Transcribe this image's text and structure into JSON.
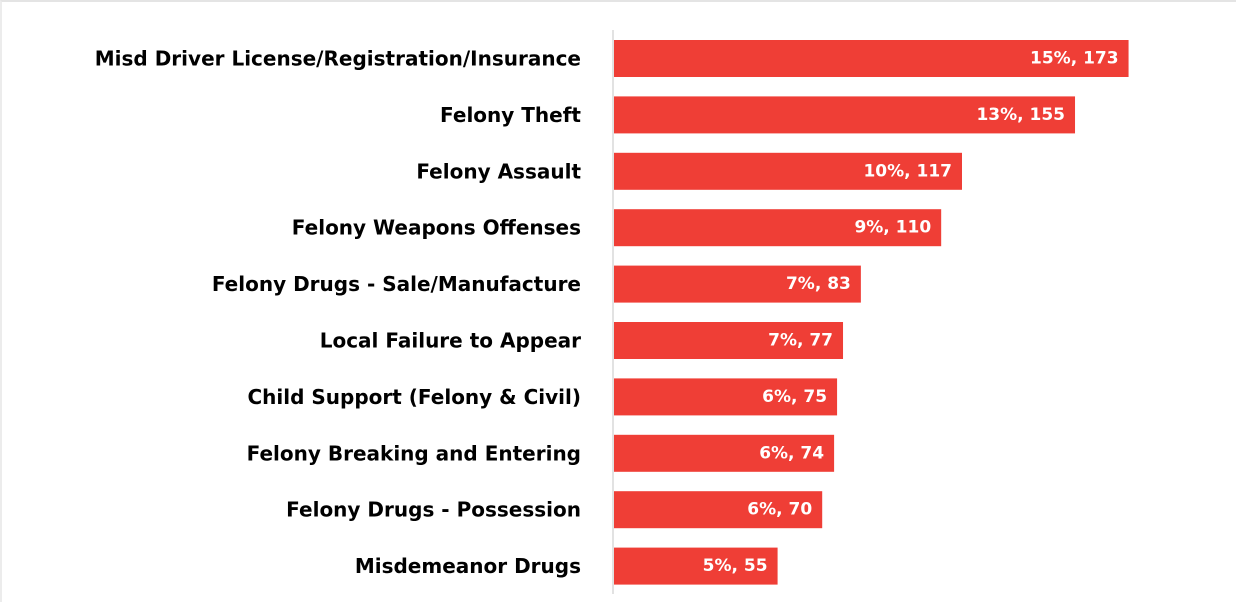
{
  "chart_data": {
    "type": "bar",
    "orientation": "horizontal",
    "categories": [
      "Misd Driver License/Registration/Insurance",
      "Felony Theft",
      "Felony Assault",
      "Felony Weapons Offenses",
      "Felony Drugs - Sale/Manufacture",
      "Local Failure to Appear",
      "Child Support (Felony & Civil)",
      "Felony Breaking and Entering",
      "Felony Drugs - Possession",
      "Misdemeanor Drugs"
    ],
    "values": [
      173,
      155,
      117,
      110,
      83,
      77,
      75,
      74,
      70,
      55
    ],
    "data_labels": [
      "15%, 173",
      "13%, 155",
      "10%, 117",
      "9%, 110",
      "7%, 83",
      "7%, 77",
      "6%, 75",
      "6%, 74",
      "6%, 70",
      "5%, 55"
    ],
    "xlim": [
      0,
      195
    ],
    "grid": false,
    "legend": "none",
    "bar_color": "#ef3e36",
    "axis_color": "#d9d9d9"
  }
}
